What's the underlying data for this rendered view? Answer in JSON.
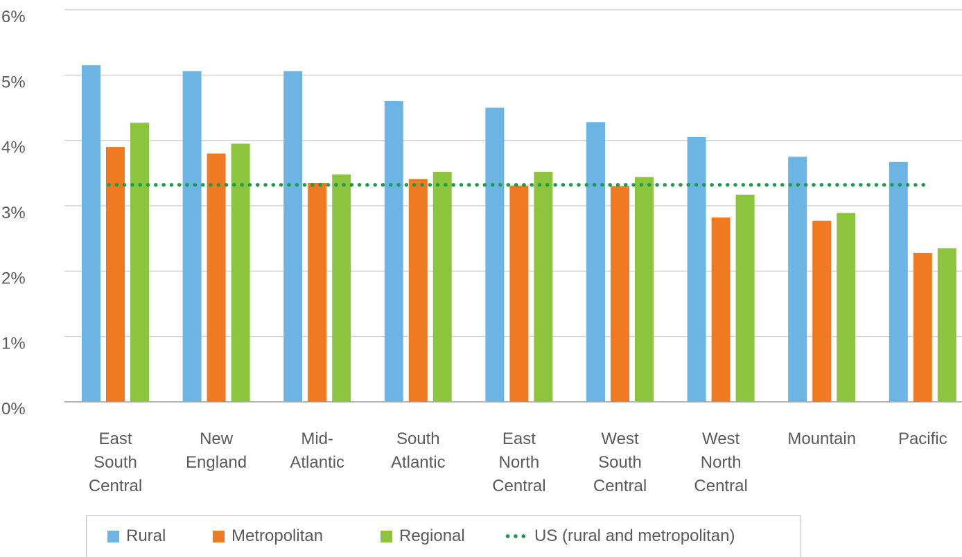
{
  "chart_data": {
    "type": "bar",
    "categories": [
      [
        "East",
        "South",
        "Central"
      ],
      [
        "New",
        "England"
      ],
      [
        "Mid-",
        "Atlantic"
      ],
      [
        "South",
        "Atlantic"
      ],
      [
        "East",
        "North",
        "Central"
      ],
      [
        "West",
        "South",
        "Central"
      ],
      [
        "West",
        "North",
        "Central"
      ],
      [
        "Mountain"
      ],
      [
        "Pacific"
      ]
    ],
    "series": [
      {
        "name": "Rural",
        "color": "#6cb4e4",
        "values": [
          5.15,
          5.06,
          5.06,
          4.6,
          4.5,
          4.28,
          4.05,
          3.75,
          3.67
        ]
      },
      {
        "name": "Metropolitan",
        "color": "#f07a22",
        "values": [
          3.9,
          3.8,
          3.35,
          3.41,
          3.31,
          3.3,
          2.82,
          2.77,
          2.28
        ]
      },
      {
        "name": "Regional",
        "color": "#8cc43d",
        "values": [
          4.27,
          3.95,
          3.48,
          3.52,
          3.52,
          3.44,
          3.17,
          2.89,
          2.35
        ]
      }
    ],
    "reference_line": {
      "name": "US (rural and metropolitan)",
      "value": 3.32,
      "color": "#1a9a4a",
      "style": "dotted"
    },
    "y_ticks": [
      "0%",
      "1%",
      "2%",
      "3%",
      "4%",
      "5%",
      "6%"
    ],
    "ylim": [
      0,
      6
    ],
    "grid": true,
    "legend_position": "bottom",
    "title": "",
    "xlabel": "",
    "ylabel": ""
  },
  "legend": {
    "rural": "Rural",
    "metropolitan": "Metropolitan",
    "regional": "Regional",
    "us": "US (rural and metropolitan)"
  }
}
